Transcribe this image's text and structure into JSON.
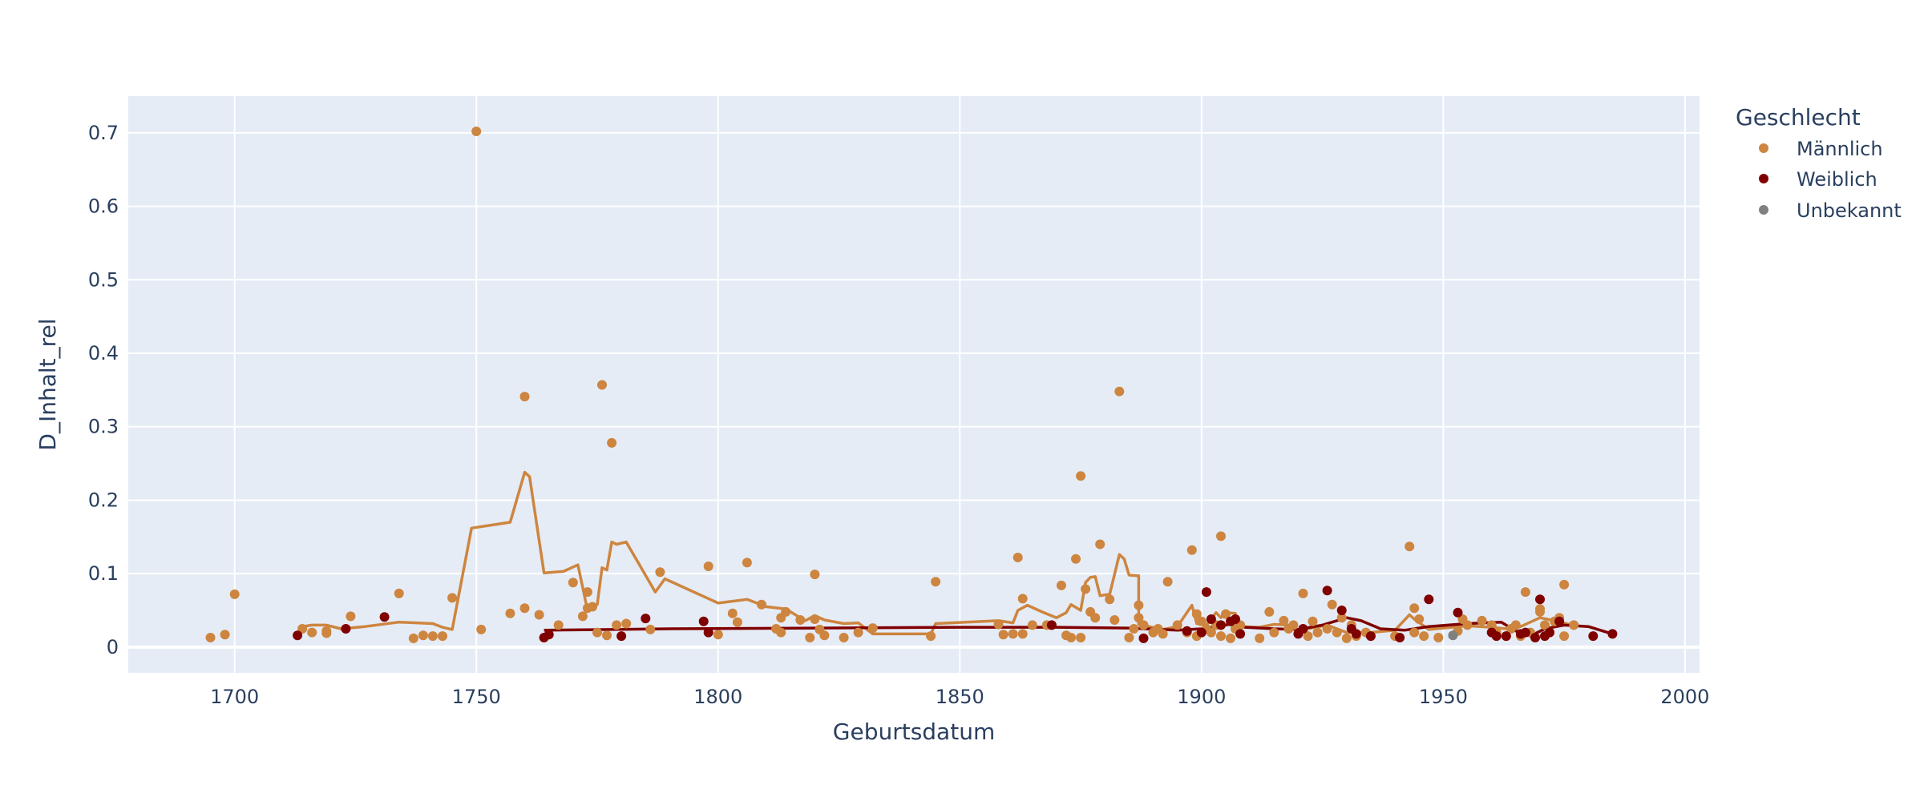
{
  "colors": {
    "background": "#ffffff",
    "plot_background": "#e5ecf6",
    "grid": "#ffffff",
    "text": "#2a3f5f",
    "maennlich": "#cd853f",
    "weiblich": "#800000",
    "unbekannt": "#808080"
  },
  "chart_data": {
    "type": "scatter",
    "title": "",
    "xlabel": "Geburtsdatum",
    "ylabel": "D_Inhalt_rel",
    "xlim": [
      1678,
      2003
    ],
    "ylim": [
      -0.035,
      0.75
    ],
    "xticks": [
      1700,
      1750,
      1800,
      1850,
      1900,
      1950,
      2000
    ],
    "yticks": [
      0,
      0.1,
      0.2,
      0.3,
      0.4,
      0.5,
      0.6,
      0.7
    ],
    "grid": true,
    "legend": {
      "title": "Geschlecht",
      "position": "top-right-outside"
    },
    "series": [
      {
        "name": "Männlich",
        "color": "#cd853f",
        "points": [
          [
            1695,
            0.013
          ],
          [
            1698,
            0.017
          ],
          [
            1700,
            0.072
          ],
          [
            1714,
            0.025
          ],
          [
            1716,
            0.02
          ],
          [
            1719,
            0.022
          ],
          [
            1719,
            0.019
          ],
          [
            1724,
            0.042
          ],
          [
            1734,
            0.073
          ],
          [
            1737,
            0.012
          ],
          [
            1739,
            0.016
          ],
          [
            1741,
            0.015
          ],
          [
            1743,
            0.015
          ],
          [
            1745,
            0.067
          ],
          [
            1750,
            0.702
          ],
          [
            1751,
            0.024
          ],
          [
            1757,
            0.046
          ],
          [
            1760,
            0.341
          ],
          [
            1760,
            0.053
          ],
          [
            1763,
            0.044
          ],
          [
            1767,
            0.03
          ],
          [
            1770,
            0.088
          ],
          [
            1772,
            0.042
          ],
          [
            1773,
            0.075
          ],
          [
            1773,
            0.053
          ],
          [
            1774,
            0.055
          ],
          [
            1775,
            0.02
          ],
          [
            1776,
            0.357
          ],
          [
            1777,
            0.016
          ],
          [
            1778,
            0.278
          ],
          [
            1779,
            0.03
          ],
          [
            1781,
            0.032
          ],
          [
            1786,
            0.024
          ],
          [
            1788,
            0.102
          ],
          [
            1798,
            0.11
          ],
          [
            1800,
            0.017
          ],
          [
            1803,
            0.046
          ],
          [
            1804,
            0.034
          ],
          [
            1806,
            0.115
          ],
          [
            1809,
            0.058
          ],
          [
            1812,
            0.025
          ],
          [
            1813,
            0.04
          ],
          [
            1814,
            0.048
          ],
          [
            1813,
            0.02
          ],
          [
            1817,
            0.037
          ],
          [
            1819,
            0.013
          ],
          [
            1820,
            0.099
          ],
          [
            1820,
            0.038
          ],
          [
            1821,
            0.024
          ],
          [
            1822,
            0.016
          ],
          [
            1826,
            0.013
          ],
          [
            1829,
            0.02
          ],
          [
            1832,
            0.026
          ],
          [
            1844,
            0.015
          ],
          [
            1845,
            0.089
          ],
          [
            1858,
            0.031
          ],
          [
            1859,
            0.017
          ],
          [
            1861,
            0.018
          ],
          [
            1862,
            0.122
          ],
          [
            1863,
            0.066
          ],
          [
            1863,
            0.018
          ],
          [
            1865,
            0.03
          ],
          [
            1868,
            0.03
          ],
          [
            1871,
            0.084
          ],
          [
            1872,
            0.016
          ],
          [
            1873,
            0.013
          ],
          [
            1874,
            0.12
          ],
          [
            1875,
            0.013
          ],
          [
            1875,
            0.233
          ],
          [
            1876,
            0.079
          ],
          [
            1877,
            0.048
          ],
          [
            1878,
            0.04
          ],
          [
            1879,
            0.14
          ],
          [
            1881,
            0.065
          ],
          [
            1882,
            0.037
          ],
          [
            1883,
            0.348
          ],
          [
            1885,
            0.013
          ],
          [
            1886,
            0.025
          ],
          [
            1887,
            0.057
          ],
          [
            1887,
            0.04
          ],
          [
            1888,
            0.03
          ],
          [
            1890,
            0.02
          ],
          [
            1891,
            0.025
          ],
          [
            1892,
            0.018
          ],
          [
            1893,
            0.089
          ],
          [
            1895,
            0.03
          ],
          [
            1897,
            0.02
          ],
          [
            1898,
            0.132
          ],
          [
            1899,
            0.045
          ],
          [
            1899,
            0.015
          ],
          [
            1900,
            0.035
          ],
          [
            1901,
            0.025
          ],
          [
            1902,
            0.02
          ],
          [
            1903,
            0.03
          ],
          [
            1904,
            0.151
          ],
          [
            1904,
            0.015
          ],
          [
            1905,
            0.045
          ],
          [
            1906,
            0.012
          ],
          [
            1907,
            0.025
          ],
          [
            1908,
            0.03
          ],
          [
            1912,
            0.012
          ],
          [
            1914,
            0.048
          ],
          [
            1915,
            0.02
          ],
          [
            1917,
            0.036
          ],
          [
            1918,
            0.025
          ],
          [
            1919,
            0.03
          ],
          [
            1921,
            0.073
          ],
          [
            1922,
            0.015
          ],
          [
            1923,
            0.035
          ],
          [
            1924,
            0.02
          ],
          [
            1926,
            0.025
          ],
          [
            1927,
            0.058
          ],
          [
            1928,
            0.02
          ],
          [
            1929,
            0.04
          ],
          [
            1930,
            0.012
          ],
          [
            1931,
            0.03
          ],
          [
            1932,
            0.015
          ],
          [
            1934,
            0.02
          ],
          [
            1935,
            0.015
          ],
          [
            1940,
            0.015
          ],
          [
            1943,
            0.137
          ],
          [
            1944,
            0.053
          ],
          [
            1944,
            0.02
          ],
          [
            1945,
            0.038
          ],
          [
            1946,
            0.015
          ],
          [
            1949,
            0.013
          ],
          [
            1953,
            0.022
          ],
          [
            1954,
            0.038
          ],
          [
            1955,
            0.03
          ],
          [
            1958,
            0.036
          ],
          [
            1960,
            0.03
          ],
          [
            1961,
            0.02
          ],
          [
            1963,
            0.015
          ],
          [
            1964,
            0.025
          ],
          [
            1965,
            0.03
          ],
          [
            1966,
            0.015
          ],
          [
            1967,
            0.075
          ],
          [
            1968,
            0.02
          ],
          [
            1970,
            0.048
          ],
          [
            1970,
            0.052
          ],
          [
            1971,
            0.03
          ],
          [
            1972,
            0.02
          ],
          [
            1973,
            0.035
          ],
          [
            1974,
            0.04
          ],
          [
            1975,
            0.085
          ],
          [
            1975,
            0.015
          ],
          [
            1977,
            0.03
          ]
        ],
        "trend": [
          [
            1714,
            0.028
          ],
          [
            1716,
            0.03
          ],
          [
            1719,
            0.03
          ],
          [
            1722,
            0.025
          ],
          [
            1727,
            0.028
          ],
          [
            1734,
            0.034
          ],
          [
            1741,
            0.032
          ],
          [
            1743,
            0.027
          ],
          [
            1745,
            0.024
          ],
          [
            1749,
            0.162
          ],
          [
            1757,
            0.17
          ],
          [
            1760,
            0.238
          ],
          [
            1761,
            0.232
          ],
          [
            1764,
            0.101
          ],
          [
            1768,
            0.103
          ],
          [
            1771,
            0.112
          ],
          [
            1773,
            0.05
          ],
          [
            1775,
            0.058
          ],
          [
            1776,
            0.108
          ],
          [
            1777,
            0.105
          ],
          [
            1778,
            0.143
          ],
          [
            1779,
            0.14
          ],
          [
            1781,
            0.143
          ],
          [
            1787,
            0.075
          ],
          [
            1789,
            0.093
          ],
          [
            1800,
            0.06
          ],
          [
            1806,
            0.065
          ],
          [
            1810,
            0.055
          ],
          [
            1814,
            0.052
          ],
          [
            1818,
            0.036
          ],
          [
            1820,
            0.043
          ],
          [
            1822,
            0.037
          ],
          [
            1826,
            0.032
          ],
          [
            1829,
            0.033
          ],
          [
            1832,
            0.018
          ],
          [
            1844,
            0.018
          ],
          [
            1845,
            0.032
          ],
          [
            1858,
            0.036
          ],
          [
            1861,
            0.033
          ],
          [
            1862,
            0.05
          ],
          [
            1864,
            0.057
          ],
          [
            1867,
            0.048
          ],
          [
            1870,
            0.04
          ],
          [
            1872,
            0.047
          ],
          [
            1873,
            0.058
          ],
          [
            1875,
            0.05
          ],
          [
            1876,
            0.088
          ],
          [
            1877,
            0.095
          ],
          [
            1878,
            0.096
          ],
          [
            1879,
            0.07
          ],
          [
            1881,
            0.072
          ],
          [
            1883,
            0.126
          ],
          [
            1884,
            0.12
          ],
          [
            1885,
            0.098
          ],
          [
            1887,
            0.097
          ],
          [
            1887,
            0.031
          ],
          [
            1892,
            0.024
          ],
          [
            1895,
            0.028
          ],
          [
            1898,
            0.057
          ],
          [
            1899,
            0.032
          ],
          [
            1901,
            0.03
          ],
          [
            1903,
            0.047
          ],
          [
            1904,
            0.04
          ],
          [
            1905,
            0.047
          ],
          [
            1907,
            0.046
          ],
          [
            1907,
            0.028
          ],
          [
            1912,
            0.027
          ],
          [
            1915,
            0.031
          ],
          [
            1918,
            0.03
          ],
          [
            1920,
            0.022
          ],
          [
            1922,
            0.025
          ],
          [
            1926,
            0.03
          ],
          [
            1930,
            0.02
          ],
          [
            1935,
            0.02
          ],
          [
            1940,
            0.023
          ],
          [
            1943,
            0.044
          ],
          [
            1944,
            0.038
          ],
          [
            1947,
            0.024
          ],
          [
            1955,
            0.029
          ],
          [
            1960,
            0.027
          ],
          [
            1963,
            0.025
          ],
          [
            1966,
            0.028
          ],
          [
            1970,
            0.04
          ],
          [
            1973,
            0.036
          ],
          [
            1978,
            0.028
          ]
        ]
      },
      {
        "name": "Weiblich",
        "color": "#800000",
        "points": [
          [
            1713,
            0.016
          ],
          [
            1723,
            0.025
          ],
          [
            1731,
            0.041
          ],
          [
            1764,
            0.013
          ],
          [
            1765,
            0.017
          ],
          [
            1780,
            0.015
          ],
          [
            1785,
            0.039
          ],
          [
            1797,
            0.035
          ],
          [
            1798,
            0.02
          ],
          [
            1869,
            0.03
          ],
          [
            1888,
            0.012
          ],
          [
            1897,
            0.022
          ],
          [
            1900,
            0.02
          ],
          [
            1901,
            0.075
          ],
          [
            1902,
            0.038
          ],
          [
            1904,
            0.03
          ],
          [
            1906,
            0.035
          ],
          [
            1907,
            0.038
          ],
          [
            1908,
            0.018
          ],
          [
            1920,
            0.018
          ],
          [
            1921,
            0.025
          ],
          [
            1926,
            0.077
          ],
          [
            1929,
            0.05
          ],
          [
            1931,
            0.025
          ],
          [
            1932,
            0.018
          ],
          [
            1935,
            0.015
          ],
          [
            1941,
            0.013
          ],
          [
            1947,
            0.065
          ],
          [
            1953,
            0.047
          ],
          [
            1960,
            0.02
          ],
          [
            1961,
            0.015
          ],
          [
            1963,
            0.015
          ],
          [
            1966,
            0.018
          ],
          [
            1967,
            0.02
          ],
          [
            1969,
            0.013
          ],
          [
            1970,
            0.065
          ],
          [
            1971,
            0.015
          ],
          [
            1972,
            0.02
          ],
          [
            1974,
            0.035
          ],
          [
            1981,
            0.015
          ],
          [
            1985,
            0.018
          ]
        ],
        "trend": [
          [
            1764,
            0.023
          ],
          [
            1790,
            0.025
          ],
          [
            1820,
            0.026
          ],
          [
            1850,
            0.027
          ],
          [
            1870,
            0.027
          ],
          [
            1885,
            0.026
          ],
          [
            1895,
            0.023
          ],
          [
            1900,
            0.025
          ],
          [
            1905,
            0.03
          ],
          [
            1907,
            0.033
          ],
          [
            1909,
            0.027
          ],
          [
            1915,
            0.025
          ],
          [
            1920,
            0.024
          ],
          [
            1925,
            0.03
          ],
          [
            1930,
            0.04
          ],
          [
            1933,
            0.036
          ],
          [
            1937,
            0.025
          ],
          [
            1942,
            0.023
          ],
          [
            1947,
            0.028
          ],
          [
            1955,
            0.032
          ],
          [
            1962,
            0.034
          ],
          [
            1965,
            0.022
          ],
          [
            1968,
            0.015
          ],
          [
            1971,
            0.025
          ],
          [
            1975,
            0.03
          ],
          [
            1980,
            0.028
          ],
          [
            1985,
            0.018
          ]
        ]
      },
      {
        "name": "Unbekannt",
        "color": "#808080",
        "points": [
          [
            1952,
            0.016
          ]
        ],
        "trend": []
      }
    ]
  }
}
